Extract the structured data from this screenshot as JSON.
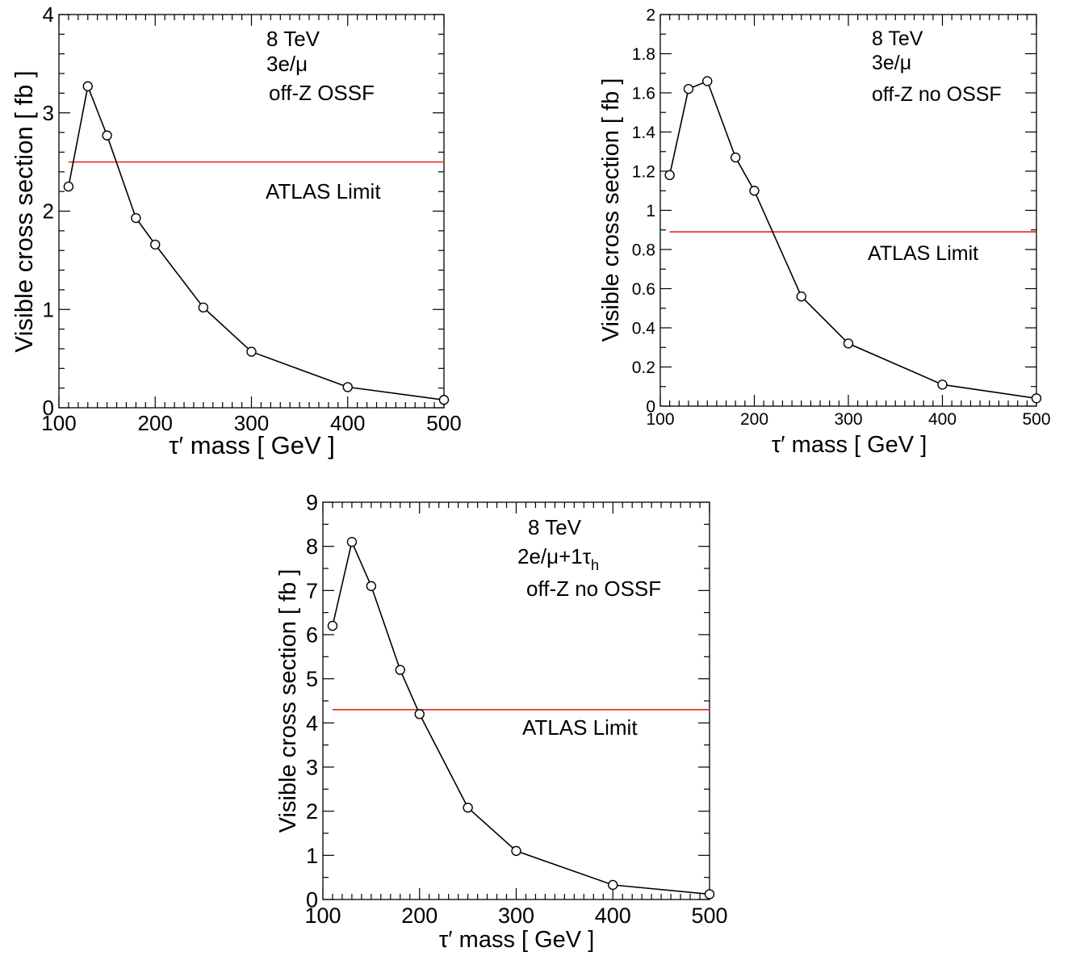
{
  "chart_data": [
    {
      "type": "line",
      "xlabel": "τ′ mass [ GeV ]",
      "ylabel": "Visible cross section [ fb ]",
      "xlim": [
        100,
        500
      ],
      "ylim": [
        0,
        4
      ],
      "xticks": [
        "100",
        "200",
        "300",
        "400",
        "500"
      ],
      "yticks": [
        "0",
        "1",
        "2",
        "3",
        "4"
      ],
      "annotations": [
        "8 TeV",
        "3e/μ",
        "off-Z OSSF"
      ],
      "limit": {
        "label": "ATLAS Limit",
        "value": 2.5,
        "color": "#e8231f"
      },
      "x": [
        110,
        130,
        150,
        180,
        200,
        250,
        300,
        400,
        500
      ],
      "y": [
        2.25,
        3.27,
        2.77,
        1.93,
        1.66,
        1.02,
        0.57,
        0.21,
        0.08
      ]
    },
    {
      "type": "line",
      "xlabel": "τ′ mass [ GeV ]",
      "ylabel": "Visible cross section [ fb ]",
      "xlim": [
        100,
        500
      ],
      "ylim": [
        0,
        2
      ],
      "xticks": [
        "100",
        "200",
        "300",
        "400",
        "500"
      ],
      "yticks": [
        "0",
        "0.2",
        "0.4",
        "0.6",
        "0.8",
        "1",
        "1.2",
        "1.4",
        "1.6",
        "1.8",
        "2"
      ],
      "annotations": [
        "8 TeV",
        "3e/μ",
        "off-Z no OSSF"
      ],
      "limit": {
        "label": "ATLAS Limit",
        "value": 0.89,
        "color": "#e8231f"
      },
      "x": [
        110,
        130,
        150,
        180,
        200,
        250,
        300,
        400,
        500
      ],
      "y": [
        1.18,
        1.62,
        1.66,
        1.27,
        1.1,
        0.56,
        0.32,
        0.11,
        0.04
      ]
    },
    {
      "type": "line",
      "xlabel": "τ′ mass [ GeV ]",
      "ylabel": "Visible cross section [ fb ]",
      "xlim": [
        100,
        500
      ],
      "ylim": [
        0,
        9
      ],
      "xticks": [
        "100",
        "200",
        "300",
        "400",
        "500"
      ],
      "yticks": [
        "0",
        "1",
        "2",
        "3",
        "4",
        "5",
        "6",
        "7",
        "8",
        "9"
      ],
      "annotations": [
        "8 TeV",
        "2e/μ+1τ",
        "off-Z no OSSF"
      ],
      "annotation_subscript": "h",
      "limit": {
        "label": "ATLAS Limit",
        "value": 4.3,
        "color": "#e8231f"
      },
      "x": [
        110,
        130,
        150,
        180,
        200,
        250,
        300,
        400,
        500
      ],
      "y": [
        6.2,
        8.1,
        7.1,
        5.2,
        4.2,
        2.08,
        1.1,
        0.33,
        0.12
      ]
    }
  ]
}
